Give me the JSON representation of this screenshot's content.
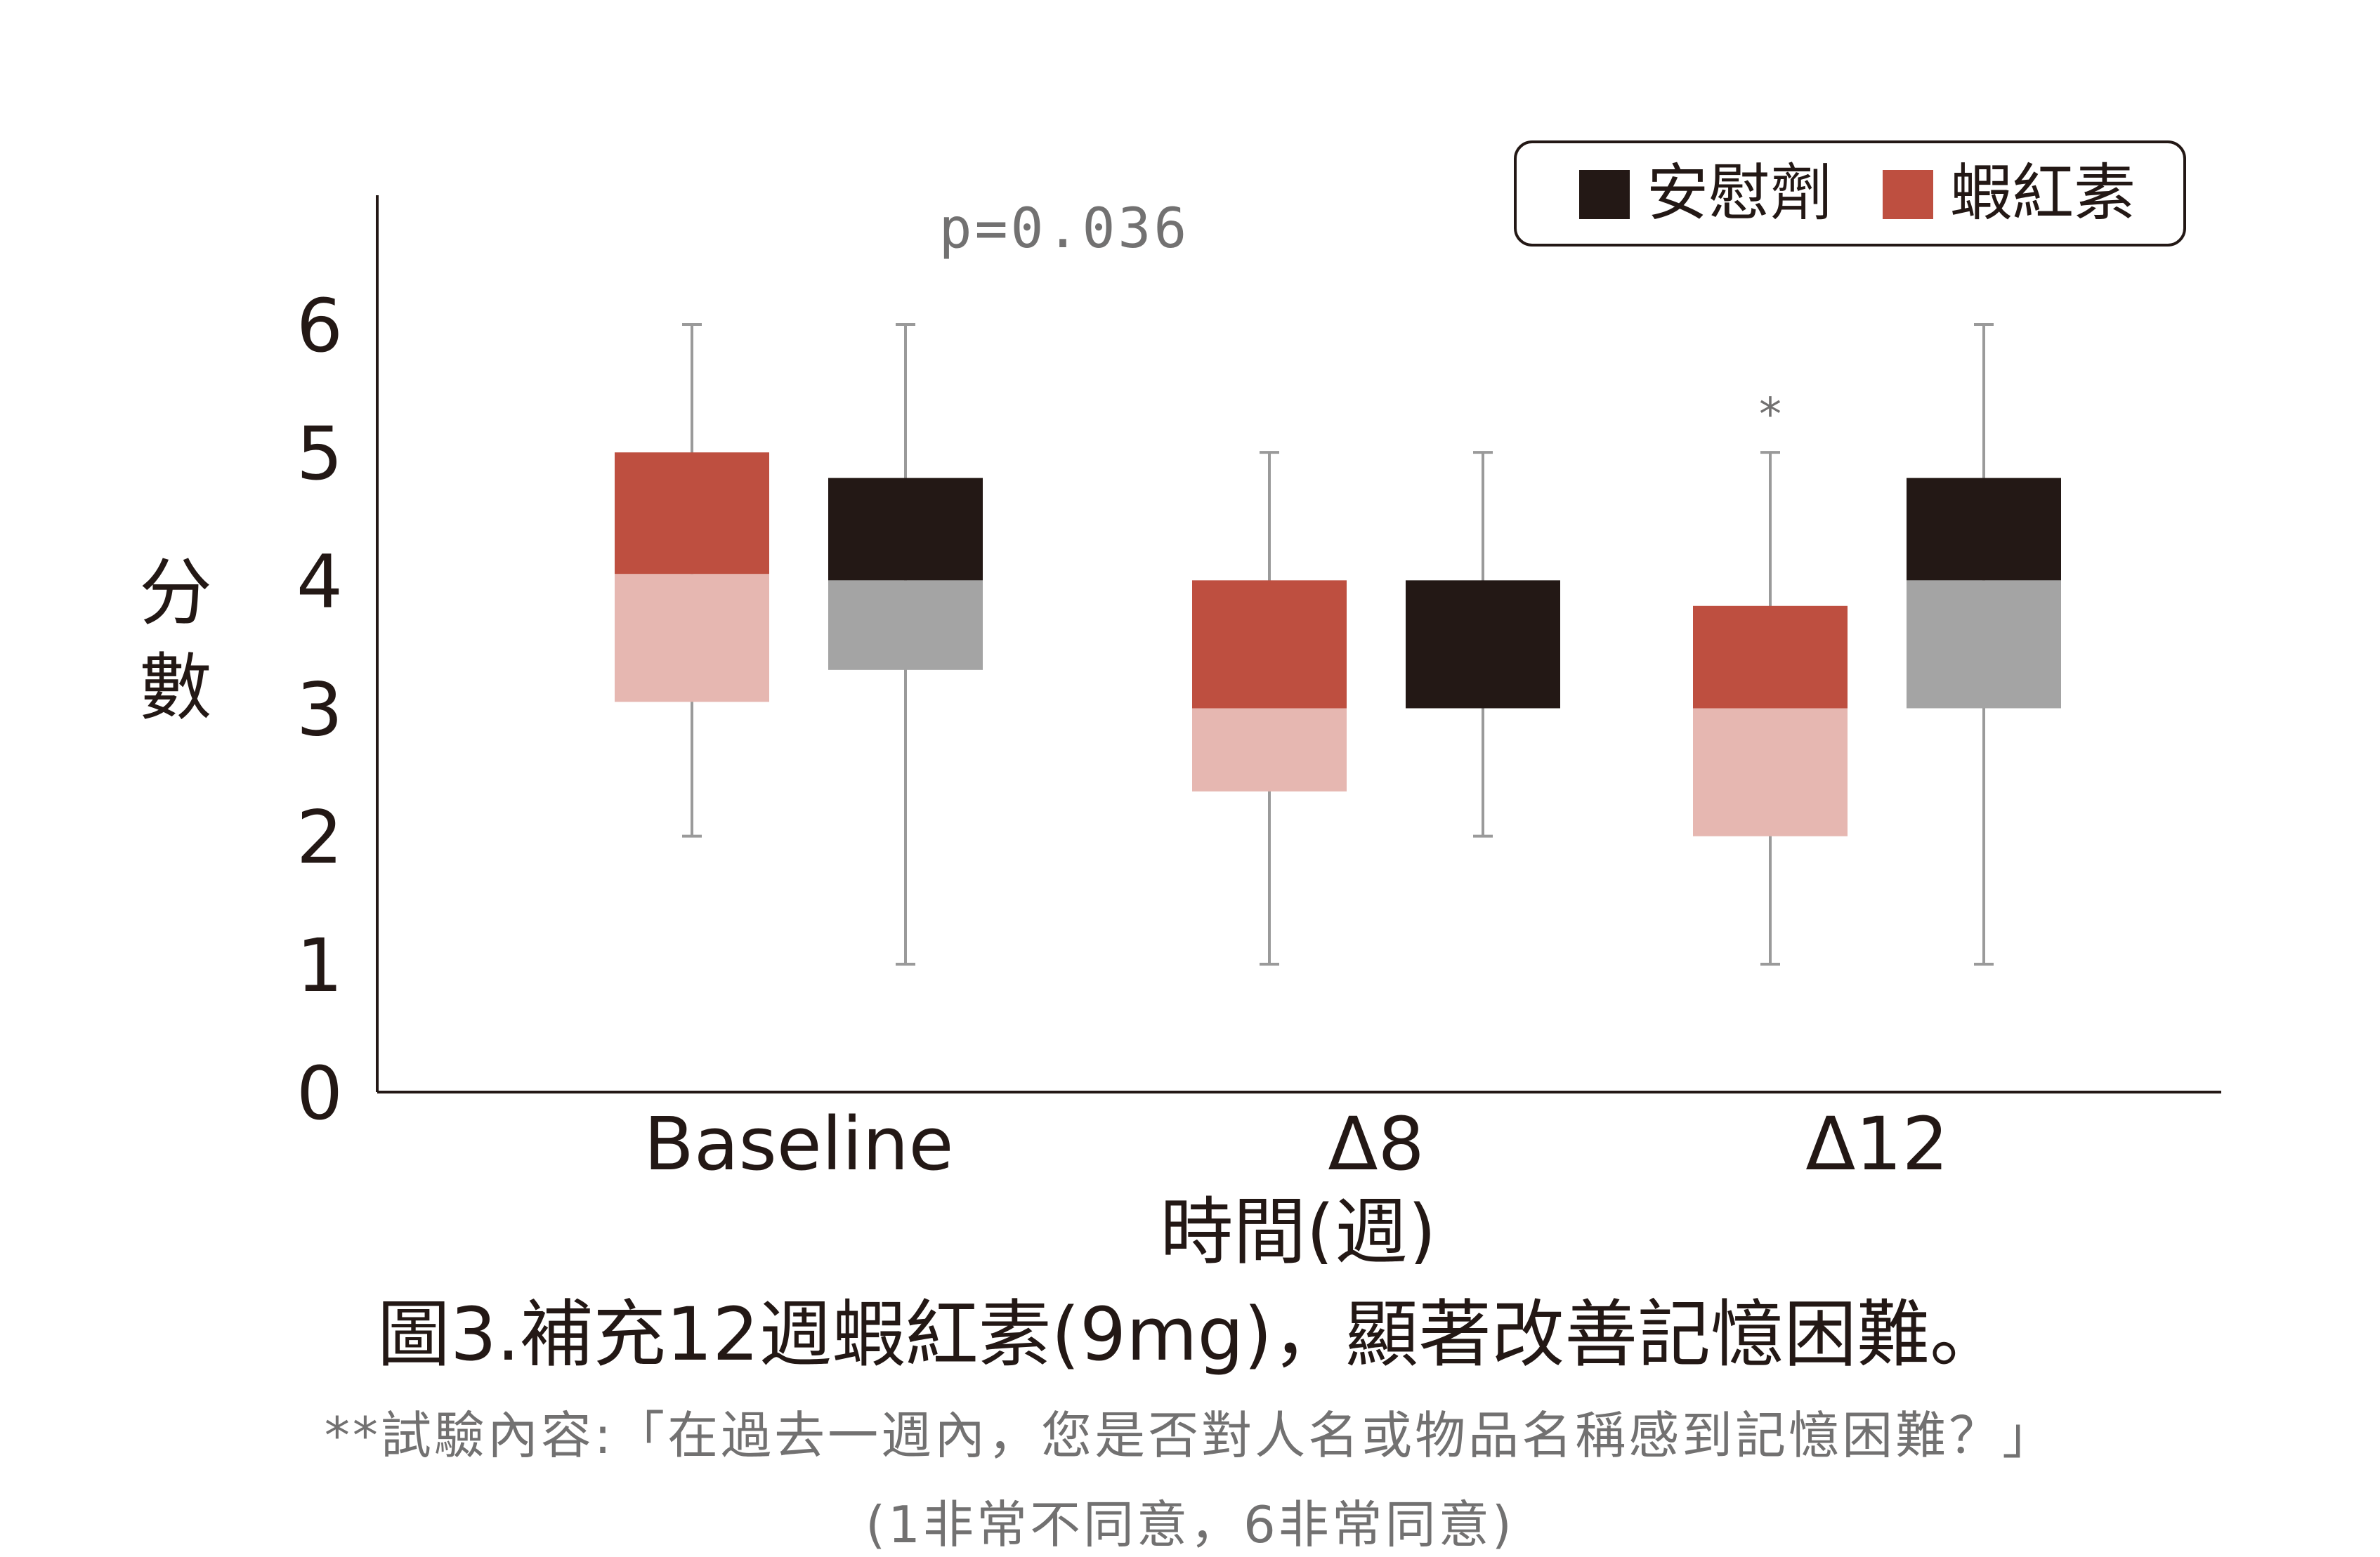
{
  "chart_data": {
    "type": "box",
    "ylabel": "分數",
    "xlabel": "時間(週)",
    "ylim": [
      0,
      7
    ],
    "yticks": [
      0,
      1,
      2,
      3,
      4,
      5,
      6
    ],
    "categories": [
      "Baseline",
      "Δ8",
      "Δ12"
    ],
    "legend_position": "top-right",
    "grid": false,
    "series": [
      {
        "name": "蝦紅素",
        "colors": {
          "upper": "#be4f40",
          "lower": "#e6b7b1"
        },
        "boxes": [
          {
            "min": 2,
            "q1": 3.05,
            "median": 4.05,
            "q3": 5,
            "max": 6
          },
          {
            "min": 1,
            "q1": 2.35,
            "median": 3.0,
            "q3": 4.0,
            "max": 5
          },
          {
            "min": 1,
            "q1": 2.0,
            "median": 3.0,
            "q3": 3.8,
            "max": 5
          }
        ]
      },
      {
        "name": "安慰劑",
        "colors": {
          "upper": "#231815",
          "lower": "#a4a4a4"
        },
        "boxes": [
          {
            "min": 1,
            "q1": 3.3,
            "median": 4.0,
            "q3": 4.8,
            "max": 6
          },
          {
            "min": 2,
            "q1": 3.0,
            "median": 3.0,
            "q3": 4.0,
            "max": 5
          },
          {
            "min": 1,
            "q1": 3.0,
            "median": 4.0,
            "q3": 4.8,
            "max": 6
          }
        ]
      }
    ],
    "legend_order": [
      "安慰劑",
      "蝦紅素"
    ],
    "legend_colors": [
      "#231815",
      "#be4f40"
    ],
    "annotations": [
      {
        "text": "p=0.036",
        "category": "Baseline"
      },
      {
        "text": "*",
        "category": "Δ12",
        "series": "蝦紅素"
      }
    ]
  },
  "caption": {
    "title": "圖3.補充12週蝦紅素(9mg)，顯著改善記憶困難。",
    "note": "**試驗內容:「在過去一週內，您是否對人名或物品名稱感到記憶困難？」",
    "scale": "(1非常不同意，6非常同意)"
  },
  "colors": {
    "axis": "#231815",
    "whisker": "#9a9a9a",
    "annotation": "#727171"
  }
}
